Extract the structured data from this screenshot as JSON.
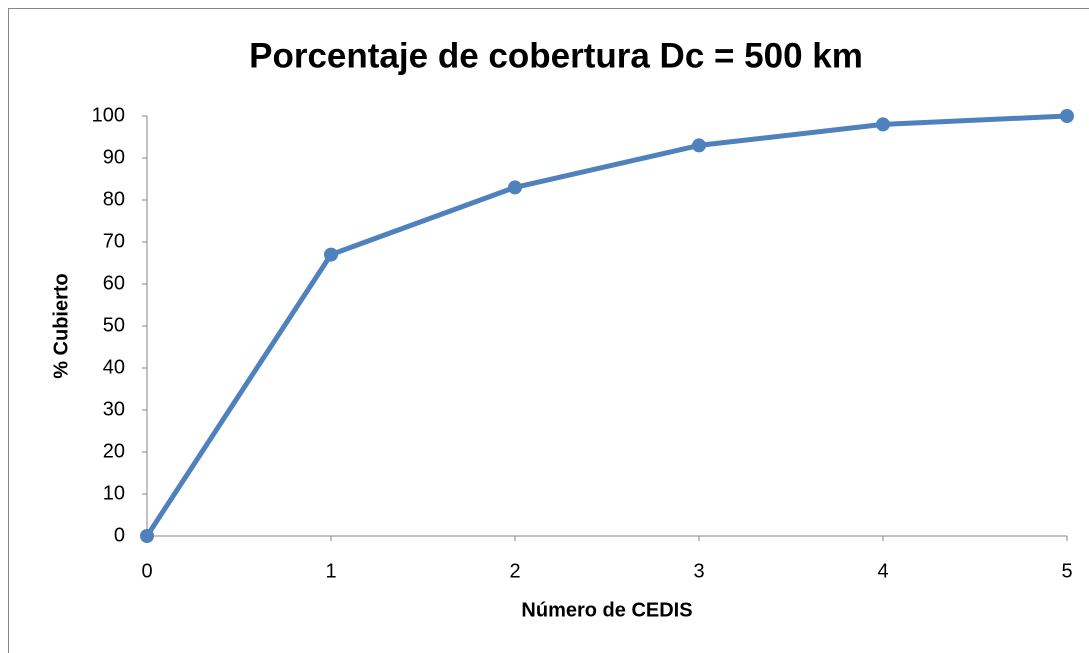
{
  "chart_data": {
    "type": "line",
    "title": "Porcentaje de cobertura Dc = 500 km",
    "x_label": "Número de CEDIS",
    "y_label": "% Cubierto",
    "x": [
      0,
      1,
      2,
      3,
      4,
      5
    ],
    "series": [
      {
        "name": "% Cubierto",
        "color": "#4f81bd",
        "values": [
          0,
          67,
          83,
          93,
          98,
          100
        ]
      }
    ],
    "xlim": [
      0,
      5
    ],
    "xticks": [
      0,
      1,
      2,
      3,
      4,
      5
    ],
    "ylim": [
      0,
      100
    ],
    "yticks": [
      0,
      10,
      20,
      30,
      40,
      50,
      60,
      70,
      80,
      90,
      100
    ],
    "grid": false,
    "legend": false
  }
}
